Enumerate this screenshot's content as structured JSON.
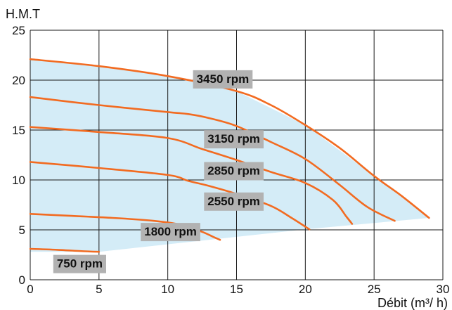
{
  "chart_data": {
    "type": "line",
    "title": "",
    "xlabel": "Débit (m³/ h)",
    "ylabel": "H.M.T",
    "xlim": [
      0,
      30
    ],
    "ylim": [
      0,
      25
    ],
    "x_ticks": [
      0,
      5,
      10,
      15,
      20,
      25,
      30
    ],
    "y_ticks": [
      0,
      5,
      10,
      15,
      20,
      25
    ],
    "grid": true,
    "operating_area_color": "#d4ecf7",
    "curve_color": "#f26b21",
    "label_box_color": "#b2b2b2",
    "operating_area": [
      [
        0,
        22.1
      ],
      [
        5,
        21.4
      ],
      [
        10,
        20.4
      ],
      [
        15,
        18.9
      ],
      [
        20,
        15.5
      ],
      [
        25,
        10.4
      ],
      [
        29,
        6.2
      ],
      [
        29,
        6.2
      ],
      [
        20,
        5.05
      ],
      [
        5,
        2.8
      ],
      [
        0,
        2.8
      ]
    ],
    "series": [
      {
        "name": "3450 rpm",
        "points": [
          [
            0,
            22.1
          ],
          [
            5,
            21.4
          ],
          [
            10,
            20.4
          ],
          [
            15,
            18.9
          ],
          [
            17.5,
            17.5
          ],
          [
            20,
            15.5
          ],
          [
            22.5,
            13.2
          ],
          [
            25,
            10.4
          ],
          [
            27,
            8.4
          ],
          [
            29,
            6.2
          ]
        ]
      },
      {
        "name": "3150 rpm",
        "points": [
          [
            0,
            18.3
          ],
          [
            5,
            17.5
          ],
          [
            10,
            16.8
          ],
          [
            11.5,
            16.6
          ],
          [
            13,
            16.2
          ],
          [
            15,
            15.4
          ],
          [
            17.5,
            13.8
          ],
          [
            20,
            12.1
          ],
          [
            22.5,
            9.5
          ],
          [
            24.5,
            7.3
          ],
          [
            26.5,
            5.9
          ]
        ]
      },
      {
        "name": "2850 rpm",
        "points": [
          [
            0,
            15.3
          ],
          [
            5,
            14.8
          ],
          [
            10,
            14.2
          ],
          [
            12.5,
            13.1
          ],
          [
            15,
            12.0
          ],
          [
            17.5,
            10.8
          ],
          [
            20,
            9.7
          ],
          [
            22,
            8.0
          ],
          [
            23,
            6.3
          ],
          [
            23.4,
            5.6
          ]
        ]
      },
      {
        "name": "2550 rpm",
        "points": [
          [
            0,
            11.8
          ],
          [
            5,
            11.2
          ],
          [
            10,
            10.5
          ],
          [
            11.5,
            9.9
          ],
          [
            13,
            9.4
          ],
          [
            15,
            8.6
          ],
          [
            17.5,
            7.4
          ],
          [
            19,
            6.2
          ],
          [
            20.3,
            5.05
          ]
        ]
      },
      {
        "name": "1800 rpm",
        "points": [
          [
            0,
            6.6
          ],
          [
            3,
            6.4
          ],
          [
            6,
            6.2
          ],
          [
            9,
            5.9
          ],
          [
            11,
            5.5
          ],
          [
            12.5,
            4.8
          ],
          [
            13.3,
            4.3
          ],
          [
            13.8,
            4.0
          ]
        ]
      },
      {
        "name": "750 rpm",
        "points": [
          [
            0,
            3.1
          ],
          [
            2,
            3.0
          ],
          [
            4,
            2.85
          ],
          [
            5,
            2.8
          ]
        ]
      }
    ],
    "curve_labels": [
      {
        "text": "3450 rpm",
        "x": 14.0,
        "y": 20.15
      },
      {
        "text": "3150 rpm",
        "x": 14.8,
        "y": 14.15
      },
      {
        "text": "2850 rpm",
        "x": 14.8,
        "y": 10.95
      },
      {
        "text": "2550 rpm",
        "x": 14.8,
        "y": 7.9
      },
      {
        "text": "1800 rpm",
        "x": 10.2,
        "y": 4.85
      },
      {
        "text": "750 rpm",
        "x": 3.6,
        "y": 1.65
      }
    ]
  }
}
